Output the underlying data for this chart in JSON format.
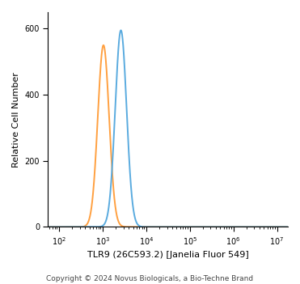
{
  "title": "",
  "xlabel": "TLR9 (26C593.2) [Janelia Fluor 549]",
  "ylabel": "Relative Cell Number",
  "copyright": "Copyright © 2024 Novus Biologicals, a Bio-Techne Brand",
  "xlim_log": [
    1.75,
    7.25
  ],
  "ylim": [
    0,
    650
  ],
  "yticks": [
    0,
    200,
    400,
    600
  ],
  "orange_peak_log": 3.02,
  "orange_peak_height": 550,
  "orange_sigma_log": 0.13,
  "blue_peak_log": 3.42,
  "blue_peak_height": 595,
  "blue_sigma_log": 0.13,
  "orange_color": "#FFA040",
  "blue_color": "#5AABDF",
  "background_color": "#FFFFFF",
  "linewidth": 1.4,
  "xlabel_fontsize": 8,
  "ylabel_fontsize": 8,
  "tick_fontsize": 7,
  "copyright_fontsize": 6.5
}
